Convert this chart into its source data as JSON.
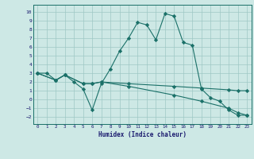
{
  "title": "",
  "xlabel": "Humidex (Indice chaleur)",
  "xlim": [
    -0.5,
    23.5
  ],
  "ylim": [
    -2.8,
    10.8
  ],
  "xticks": [
    0,
    1,
    2,
    3,
    4,
    5,
    6,
    7,
    8,
    9,
    10,
    11,
    12,
    13,
    14,
    15,
    16,
    17,
    18,
    19,
    20,
    21,
    22,
    23
  ],
  "yticks": [
    -2,
    -1,
    0,
    1,
    2,
    3,
    4,
    5,
    6,
    7,
    8,
    9,
    10
  ],
  "bg_color": "#cde8e5",
  "line_color": "#1a7068",
  "grid_color": "#9ec8c5",
  "line1_x": [
    0,
    1,
    2,
    3,
    4,
    5,
    6,
    7,
    8,
    9,
    10,
    11,
    12,
    13,
    14,
    15,
    16,
    17,
    18,
    19,
    20,
    21,
    22,
    23
  ],
  "line1_y": [
    3.0,
    3.0,
    2.2,
    2.8,
    2.0,
    1.2,
    -1.2,
    1.8,
    3.5,
    5.5,
    7.0,
    8.8,
    8.5,
    6.8,
    9.8,
    9.5,
    6.5,
    6.2,
    1.2,
    0.2,
    -0.2,
    -1.2,
    -1.8,
    -1.8
  ],
  "line2_x": [
    0,
    2,
    3,
    5,
    6,
    7,
    10,
    15,
    18,
    21,
    22,
    23
  ],
  "line2_y": [
    3.0,
    2.2,
    2.8,
    1.8,
    1.8,
    2.0,
    1.8,
    1.5,
    1.3,
    1.1,
    1.0,
    1.0
  ],
  "line3_x": [
    0,
    2,
    3,
    5,
    6,
    7,
    10,
    15,
    18,
    21,
    22,
    23
  ],
  "line3_y": [
    3.0,
    2.2,
    2.8,
    1.8,
    1.8,
    2.0,
    1.5,
    0.5,
    -0.2,
    -1.0,
    -1.5,
    -1.8
  ]
}
